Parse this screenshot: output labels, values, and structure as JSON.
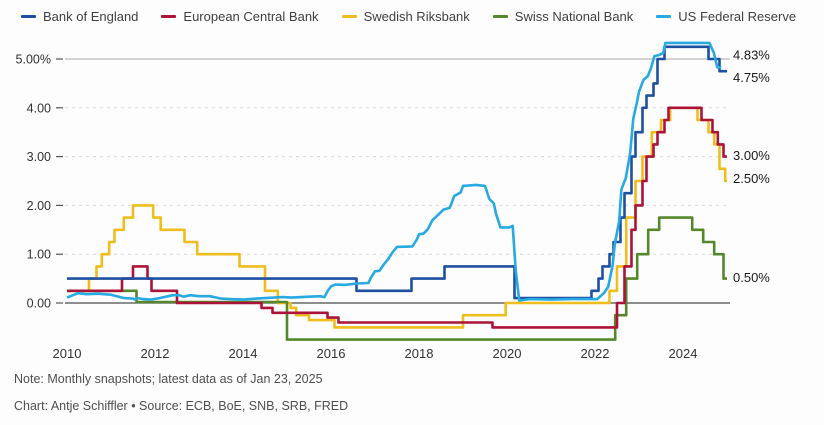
{
  "legend": {
    "items": [
      {
        "label": "Bank of England",
        "color": "#1e50a2"
      },
      {
        "label": "European Central Bank",
        "color": "#ac1339"
      },
      {
        "label": "Swedish Riksbank",
        "color": "#efbd1c"
      },
      {
        "label": "Swiss National Bank",
        "color": "#55882c"
      },
      {
        "label": "US Federal Reserve",
        "color": "#27a9e1"
      }
    ]
  },
  "chart_data": {
    "type": "line",
    "title": "",
    "xlabel": "",
    "ylabel": "",
    "x_axis": {
      "min": 2010,
      "max": 2025.1,
      "ticks": [
        2010,
        2012,
        2014,
        2016,
        2018,
        2020,
        2022,
        2024
      ]
    },
    "y_axis": {
      "min": -0.75,
      "max": 5.4,
      "ticks": [
        {
          "label": "5.00%",
          "value": 5,
          "style": "solid"
        },
        {
          "label": "4.00",
          "value": 4,
          "style": "dashed"
        },
        {
          "label": "3.00",
          "value": 3,
          "style": "dashed"
        },
        {
          "label": "2.00",
          "value": 2,
          "style": "dashed"
        },
        {
          "label": "1.00",
          "value": 1,
          "style": "dashed"
        },
        {
          "label": "0.00",
          "value": 0,
          "style": "axis"
        }
      ]
    },
    "grid": "horizontal-only",
    "legend_position": "top",
    "step_end": 2025.0,
    "draw_order": [
      2,
      3,
      1,
      0,
      4
    ],
    "series": [
      {
        "name": "Bank of England",
        "color": "#1e50a2",
        "mode": "step",
        "end_label": "4.75%",
        "label_at": 4.62,
        "points": [
          [
            2010.0,
            0.5
          ],
          [
            2016.58,
            0.25
          ],
          [
            2017.83,
            0.5
          ],
          [
            2018.58,
            0.75
          ],
          [
            2020.17,
            0.1
          ],
          [
            2021.92,
            0.25
          ],
          [
            2022.08,
            0.5
          ],
          [
            2022.17,
            0.75
          ],
          [
            2022.33,
            1.0
          ],
          [
            2022.42,
            1.25
          ],
          [
            2022.58,
            1.75
          ],
          [
            2022.67,
            2.25
          ],
          [
            2022.83,
            3.0
          ],
          [
            2022.92,
            3.5
          ],
          [
            2023.08,
            4.0
          ],
          [
            2023.17,
            4.25
          ],
          [
            2023.33,
            4.5
          ],
          [
            2023.42,
            5.0
          ],
          [
            2023.58,
            5.25
          ],
          [
            2024.58,
            5.0
          ],
          [
            2024.83,
            4.75
          ]
        ]
      },
      {
        "name": "European Central Bank",
        "color": "#ac1339",
        "mode": "step",
        "end_label": "3.00%",
        "label_at": 3.02,
        "points": [
          [
            2010.0,
            0.25
          ],
          [
            2011.25,
            0.5
          ],
          [
            2011.5,
            0.75
          ],
          [
            2011.83,
            0.5
          ],
          [
            2011.92,
            0.25
          ],
          [
            2012.5,
            0.0
          ],
          [
            2014.42,
            -0.1
          ],
          [
            2014.67,
            -0.2
          ],
          [
            2015.92,
            -0.3
          ],
          [
            2016.17,
            -0.4
          ],
          [
            2019.67,
            -0.5
          ],
          [
            2022.5,
            0.0
          ],
          [
            2022.67,
            0.75
          ],
          [
            2022.83,
            1.5
          ],
          [
            2022.92,
            2.0
          ],
          [
            2023.08,
            2.5
          ],
          [
            2023.17,
            3.0
          ],
          [
            2023.33,
            3.25
          ],
          [
            2023.42,
            3.5
          ],
          [
            2023.58,
            3.75
          ],
          [
            2023.67,
            4.0
          ],
          [
            2024.42,
            3.75
          ],
          [
            2024.67,
            3.5
          ],
          [
            2024.79,
            3.25
          ],
          [
            2024.92,
            3.0
          ]
        ]
      },
      {
        "name": "Swedish Riksbank",
        "color": "#efbd1c",
        "mode": "step",
        "end_label": "2.50%",
        "label_at": 2.55,
        "points": [
          [
            2010.0,
            0.25
          ],
          [
            2010.5,
            0.5
          ],
          [
            2010.67,
            0.75
          ],
          [
            2010.79,
            1.0
          ],
          [
            2010.96,
            1.25
          ],
          [
            2011.08,
            1.5
          ],
          [
            2011.29,
            1.75
          ],
          [
            2011.5,
            2.0
          ],
          [
            2011.96,
            1.75
          ],
          [
            2012.13,
            1.5
          ],
          [
            2012.67,
            1.25
          ],
          [
            2012.96,
            1.0
          ],
          [
            2013.92,
            0.75
          ],
          [
            2014.5,
            0.25
          ],
          [
            2014.79,
            0.0
          ],
          [
            2015.08,
            -0.1
          ],
          [
            2015.21,
            -0.25
          ],
          [
            2015.5,
            -0.35
          ],
          [
            2016.08,
            -0.5
          ],
          [
            2019.0,
            -0.25
          ],
          [
            2019.97,
            0.0
          ],
          [
            2022.33,
            0.25
          ],
          [
            2022.5,
            0.75
          ],
          [
            2022.71,
            1.75
          ],
          [
            2022.92,
            2.5
          ],
          [
            2023.08,
            3.0
          ],
          [
            2023.29,
            3.5
          ],
          [
            2023.5,
            3.75
          ],
          [
            2023.71,
            4.0
          ],
          [
            2024.33,
            3.75
          ],
          [
            2024.58,
            3.5
          ],
          [
            2024.71,
            3.25
          ],
          [
            2024.83,
            2.75
          ],
          [
            2024.96,
            2.5
          ]
        ]
      },
      {
        "name": "Swiss National Bank",
        "color": "#55882c",
        "mode": "step",
        "end_label": "0.50%",
        "label_at": 0.52,
        "points": [
          [
            2010.0,
            0.25
          ],
          [
            2011.58,
            0.02
          ],
          [
            2015.0,
            -0.75
          ],
          [
            2022.46,
            -0.25
          ],
          [
            2022.71,
            0.5
          ],
          [
            2022.96,
            1.0
          ],
          [
            2023.21,
            1.5
          ],
          [
            2023.46,
            1.75
          ],
          [
            2024.21,
            1.5
          ],
          [
            2024.46,
            1.25
          ],
          [
            2024.71,
            1.0
          ],
          [
            2024.92,
            0.5
          ]
        ]
      },
      {
        "name": "US Federal Reserve",
        "color": "#27a9e1",
        "mode": "linear",
        "end_label": "4.83%",
        "label_at": 5.08,
        "points": [
          [
            2010.0,
            0.11
          ],
          [
            2010.25,
            0.2
          ],
          [
            2010.45,
            0.18
          ],
          [
            2010.7,
            0.19
          ],
          [
            2011.0,
            0.17
          ],
          [
            2011.3,
            0.1
          ],
          [
            2011.5,
            0.09
          ],
          [
            2011.55,
            0.07
          ],
          [
            2011.6,
            0.1
          ],
          [
            2011.75,
            0.08
          ],
          [
            2011.9,
            0.07
          ],
          [
            2012.1,
            0.1
          ],
          [
            2012.3,
            0.14
          ],
          [
            2012.4,
            0.16
          ],
          [
            2012.55,
            0.16
          ],
          [
            2012.65,
            0.13
          ],
          [
            2012.8,
            0.16
          ],
          [
            2013.0,
            0.14
          ],
          [
            2013.25,
            0.14
          ],
          [
            2013.4,
            0.11
          ],
          [
            2013.5,
            0.09
          ],
          [
            2013.7,
            0.08
          ],
          [
            2014.0,
            0.07
          ],
          [
            2014.3,
            0.09
          ],
          [
            2014.9,
            0.12
          ],
          [
            2015.1,
            0.11
          ],
          [
            2015.5,
            0.13
          ],
          [
            2015.75,
            0.14
          ],
          [
            2015.85,
            0.12
          ],
          [
            2015.92,
            0.24
          ],
          [
            2016.0,
            0.34
          ],
          [
            2016.1,
            0.38
          ],
          [
            2016.3,
            0.37
          ],
          [
            2016.6,
            0.4
          ],
          [
            2016.85,
            0.41
          ],
          [
            2016.92,
            0.54
          ],
          [
            2017.0,
            0.65
          ],
          [
            2017.1,
            0.66
          ],
          [
            2017.2,
            0.79
          ],
          [
            2017.3,
            0.9
          ],
          [
            2017.4,
            1.04
          ],
          [
            2017.5,
            1.15
          ],
          [
            2017.85,
            1.16
          ],
          [
            2017.95,
            1.3
          ],
          [
            2018.0,
            1.41
          ],
          [
            2018.1,
            1.42
          ],
          [
            2018.2,
            1.51
          ],
          [
            2018.3,
            1.69
          ],
          [
            2018.45,
            1.82
          ],
          [
            2018.55,
            1.91
          ],
          [
            2018.7,
            1.95
          ],
          [
            2018.8,
            2.19
          ],
          [
            2018.95,
            2.27
          ],
          [
            2019.0,
            2.4
          ],
          [
            2019.3,
            2.42
          ],
          [
            2019.5,
            2.4
          ],
          [
            2019.6,
            2.13
          ],
          [
            2019.7,
            2.04
          ],
          [
            2019.75,
            1.83
          ],
          [
            2019.85,
            1.55
          ],
          [
            2020.05,
            1.55
          ],
          [
            2020.13,
            1.58
          ],
          [
            2020.2,
            0.65
          ],
          [
            2020.28,
            0.05
          ],
          [
            2020.5,
            0.08
          ],
          [
            2021.0,
            0.07
          ],
          [
            2021.5,
            0.08
          ],
          [
            2022.05,
            0.08
          ],
          [
            2022.2,
            0.2
          ],
          [
            2022.3,
            0.33
          ],
          [
            2022.4,
            0.77
          ],
          [
            2022.45,
            1.21
          ],
          [
            2022.55,
            1.68
          ],
          [
            2022.6,
            2.33
          ],
          [
            2022.7,
            2.56
          ],
          [
            2022.8,
            3.08
          ],
          [
            2022.87,
            3.78
          ],
          [
            2022.95,
            4.1
          ],
          [
            2023.0,
            4.33
          ],
          [
            2023.1,
            4.57
          ],
          [
            2023.2,
            4.65
          ],
          [
            2023.28,
            4.83
          ],
          [
            2023.35,
            5.06
          ],
          [
            2023.45,
            5.08
          ],
          [
            2023.55,
            5.12
          ],
          [
            2023.6,
            5.33
          ],
          [
            2024.6,
            5.33
          ],
          [
            2024.7,
            5.13
          ],
          [
            2024.78,
            4.83
          ],
          [
            2024.87,
            4.83
          ]
        ]
      }
    ]
  },
  "notes": {
    "note": "Note: Monthly snapshots; latest data as of Jan 23, 2025",
    "credit": "Chart: Antje Schiffler • Source: ECB, BoE, SNB, SRB, FRED"
  },
  "colors": {
    "background": "#fdfdfd",
    "grid_dashed": "#dadada",
    "grid_solid": "#a9a9a9",
    "zero_line": "#4d4d4d",
    "tick_text": "#333333",
    "end_label_text": "#1a1a1a",
    "note_text": "#4f4f4f"
  }
}
